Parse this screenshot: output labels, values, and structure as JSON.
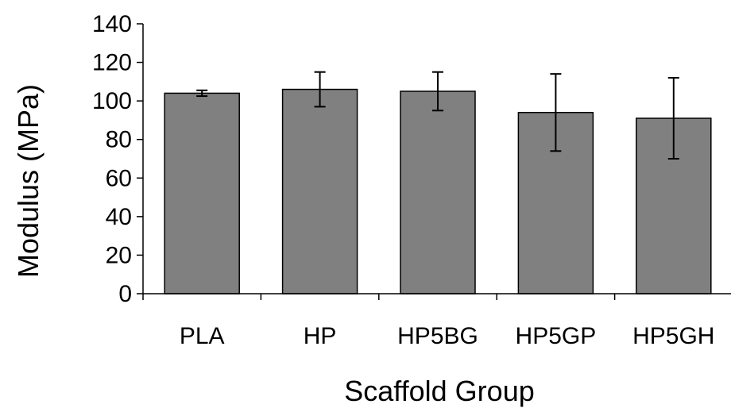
{
  "chart_data": {
    "type": "bar",
    "title": "",
    "xlabel": "Scaffold Group",
    "ylabel": "Modulus (MPa)",
    "categories": [
      "PLA",
      "HP",
      "HP5BG",
      "HP5GP",
      "HP5GH"
    ],
    "series": [
      {
        "values": [
          104,
          106,
          105,
          94,
          91
        ],
        "error": [
          1.5,
          9,
          10,
          20,
          21
        ]
      }
    ],
    "ylim": [
      0,
      140
    ],
    "yticks": [
      0,
      20,
      40,
      60,
      80,
      100,
      120,
      140
    ],
    "grid": false,
    "legend": "none",
    "bar_color": "#808080"
  }
}
